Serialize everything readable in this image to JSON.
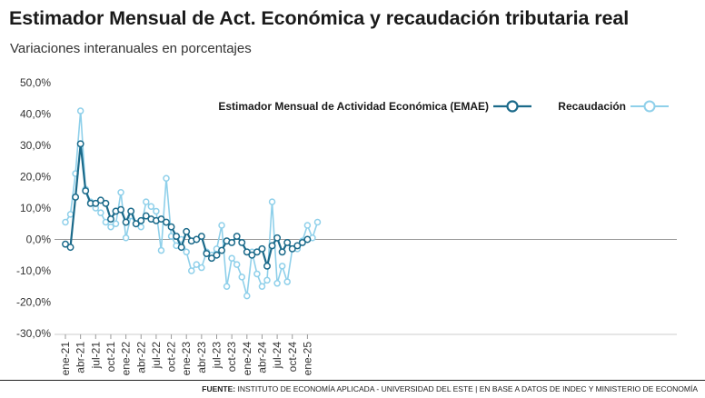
{
  "title": "Estimador Mensual de Act. Económica y recaudación tributaria real",
  "subtitle": "Variaciones interanuales en porcentajes",
  "footer": {
    "label": "FUENTE:",
    "text": "INSTITUTO DE ECONOMÍA APLICADA - UNIVERSIDAD DEL ESTE | EN BASE A DATOS DE INDEC Y MINISTERIO DE ECONOMÍA"
  },
  "colors": {
    "emae": "#1b6a8a",
    "recaudacion": "#8fd0ea",
    "zero_line": "#999999",
    "grid": "#dddddd"
  },
  "chart_data": {
    "type": "line",
    "title": "Estimador Mensual de Act. Económica y recaudación tributaria real",
    "subtitle": "Variaciones interanuales en porcentajes",
    "xlabel": "",
    "ylabel": "",
    "ylim": [
      -30,
      50
    ],
    "ytick_values": [
      50,
      40,
      30,
      20,
      10,
      0,
      -10,
      -20,
      -30
    ],
    "yticks": [
      "50,0%",
      "40,0%",
      "30,0%",
      "20,0%",
      "10,0%",
      "0,0%",
      "-10,0%",
      "-20,0%",
      "-30,0%"
    ],
    "xticks": [
      {
        "label": "ene-21",
        "index": 0
      },
      {
        "label": "abr-21",
        "index": 3
      },
      {
        "label": "jul-21",
        "index": 6
      },
      {
        "label": "oct-21",
        "index": 9
      },
      {
        "label": "ene-22",
        "index": 12
      },
      {
        "label": "abr-22",
        "index": 15
      },
      {
        "label": "jul-22",
        "index": 18
      },
      {
        "label": "oct-22",
        "index": 21
      },
      {
        "label": "ene-23",
        "index": 24
      },
      {
        "label": "abr-23",
        "index": 27
      },
      {
        "label": "jul-23",
        "index": 30
      },
      {
        "label": "oct-23",
        "index": 33
      },
      {
        "label": "ene-24",
        "index": 36
      },
      {
        "label": "abr-24",
        "index": 39
      },
      {
        "label": "jul-24",
        "index": 42
      },
      {
        "label": "oct-24",
        "index": 45
      },
      {
        "label": "ene-25",
        "index": 48
      }
    ],
    "legend_placement": "top",
    "series": [
      {
        "name": "Estimador Mensual de Actividad Económica (EMAE)",
        "values": [
          -1.5,
          -2.5,
          13.5,
          30.5,
          15.5,
          11.5,
          11.5,
          12.5,
          11.5,
          6.5,
          9,
          9.5,
          5.5,
          9,
          5,
          6,
          7.5,
          6.5,
          6,
          6.5,
          5.5,
          4,
          1,
          -2.5,
          2.5,
          -0.5,
          0,
          1,
          -4.5,
          -6,
          -5,
          -3.5,
          -0.5,
          -1,
          1,
          -1,
          -4,
          -5,
          -4,
          -3,
          -8.5,
          -2,
          0.5,
          -4,
          -1,
          -3,
          -2,
          -1,
          0
        ]
      },
      {
        "name": "Recaudación",
        "values": [
          5.5,
          8,
          21,
          41,
          16,
          12,
          10,
          8.5,
          5.5,
          4,
          5,
          15,
          0.5,
          7.5,
          5,
          4,
          12,
          10.5,
          9,
          -3.5,
          19.5,
          1,
          -2,
          0,
          -4,
          -10,
          -8,
          -9,
          -4,
          -5,
          -3,
          4.5,
          -15,
          -6,
          -8,
          -12,
          -18,
          -4,
          -11,
          -15,
          -13,
          12,
          -14,
          -8.5,
          -13.5,
          -3,
          -3,
          -0.5,
          4.5,
          0.5,
          5.5
        ]
      }
    ]
  }
}
